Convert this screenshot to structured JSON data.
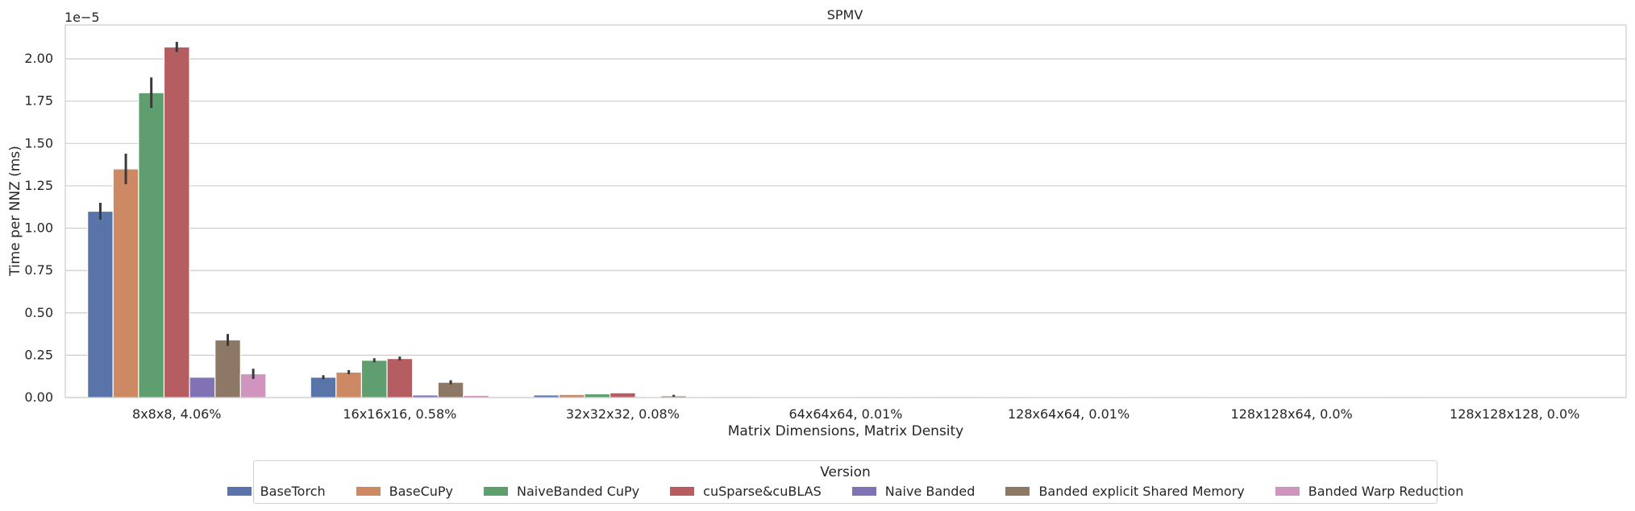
{
  "chart_data": {
    "type": "bar",
    "title": "SPMV",
    "xlabel": "Matrix Dimensions, Matrix Density",
    "ylabel": "Time per NNZ (ms)",
    "y_offset_text": "1e−5",
    "y_scale_exponent": -5,
    "ylim": [
      0,
      2.2
    ],
    "yticks": [
      "0.00",
      "0.25",
      "0.50",
      "0.75",
      "1.00",
      "1.25",
      "1.50",
      "1.75",
      "2.00"
    ],
    "grid": true,
    "categories": [
      "8x8x8, 4.06%",
      "16x16x16, 0.58%",
      "32x32x32, 0.08%",
      "64x64x64, 0.01%",
      "128x64x64, 0.01%",
      "128x128x64, 0.0%",
      "128x128x128, 0.0%"
    ],
    "series": [
      {
        "name": "BaseTorch",
        "color": "#5874a8",
        "values": [
          1.1,
          0.12,
          0.015,
          0.002,
          0.001,
          0.0005,
          0.0002
        ],
        "err": [
          0.05,
          0.012,
          0,
          0,
          0,
          0,
          0
        ]
      },
      {
        "name": "BaseCuPy",
        "color": "#cc8963",
        "values": [
          1.35,
          0.15,
          0.018,
          0.002,
          0.001,
          0.0005,
          0.0002
        ],
        "err": [
          0.09,
          0.012,
          0,
          0,
          0,
          0,
          0
        ]
      },
      {
        "name": "NaiveBanded CuPy",
        "color": "#5f9e6e",
        "values": [
          1.8,
          0.22,
          0.022,
          0.003,
          0.0015,
          0.0007,
          0.0003
        ],
        "err": [
          0.09,
          0.012,
          0,
          0,
          0,
          0,
          0
        ]
      },
      {
        "name": "cuSparse&cuBLAS",
        "color": "#b55d60",
        "values": [
          2.07,
          0.23,
          0.028,
          0.003,
          0.0015,
          0.0007,
          0.0003
        ],
        "err": [
          0.03,
          0.012,
          0,
          0,
          0,
          0,
          0
        ]
      },
      {
        "name": "Naive Banded",
        "color": "#8172b3",
        "values": [
          0.12,
          0.015,
          0.002,
          0.0003,
          0.0002,
          0.0001,
          5e-05
        ],
        "err": [
          0,
          0,
          0,
          0,
          0,
          0,
          0
        ]
      },
      {
        "name": "Banded explicit Shared Memory",
        "color": "#8d7866",
        "values": [
          0.34,
          0.09,
          0.01,
          0.001,
          0.0005,
          0.0003,
          0.0001
        ],
        "err": [
          0.035,
          0.012,
          0.006,
          0,
          0,
          0,
          0
        ]
      },
      {
        "name": "Banded Warp Reduction",
        "color": "#d095bf",
        "values": [
          0.14,
          0.013,
          0.002,
          0.0003,
          0.0002,
          0.0001,
          5e-05
        ],
        "err": [
          0.03,
          0,
          0,
          0,
          0,
          0,
          0
        ]
      }
    ],
    "legend": {
      "title": "Version",
      "placement": "bottom-center",
      "ncol": 7
    }
  }
}
